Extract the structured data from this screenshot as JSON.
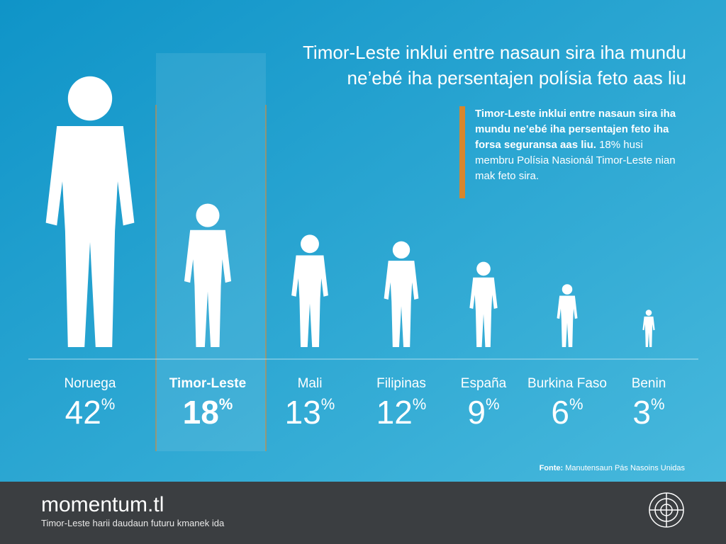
{
  "chart_data": {
    "type": "pictograph",
    "title": [
      "Timor-Leste inklui entre nasaun sira iha mundu",
      "ne’ebé iha persentajen polísia feto aas liu"
    ],
    "note_bold": "Timor-Leste inklui entre nasaun sira iha mundu ne’ebé iha persentajen feto iha forsa seguransa aas liu.",
    "note_text": "18% husi membru Polísia Nasionál Timor-Leste nian mak feto sira.",
    "categories": [
      "Noruega",
      "Timor-Leste",
      "Mali",
      "Filipinas",
      "España",
      "Burkina Faso",
      "Benin"
    ],
    "values": [
      42,
      18,
      13,
      12,
      9,
      6,
      3
    ],
    "unit": "%",
    "color": "#ffffff",
    "source_label": "Fonte:",
    "source_text": "Manutensaun Pás Nasoins Unidas"
  },
  "footer": {
    "brand": "momentum.tl",
    "tagline": "Timor-Leste harii daudaun futuru kmanek ida"
  }
}
